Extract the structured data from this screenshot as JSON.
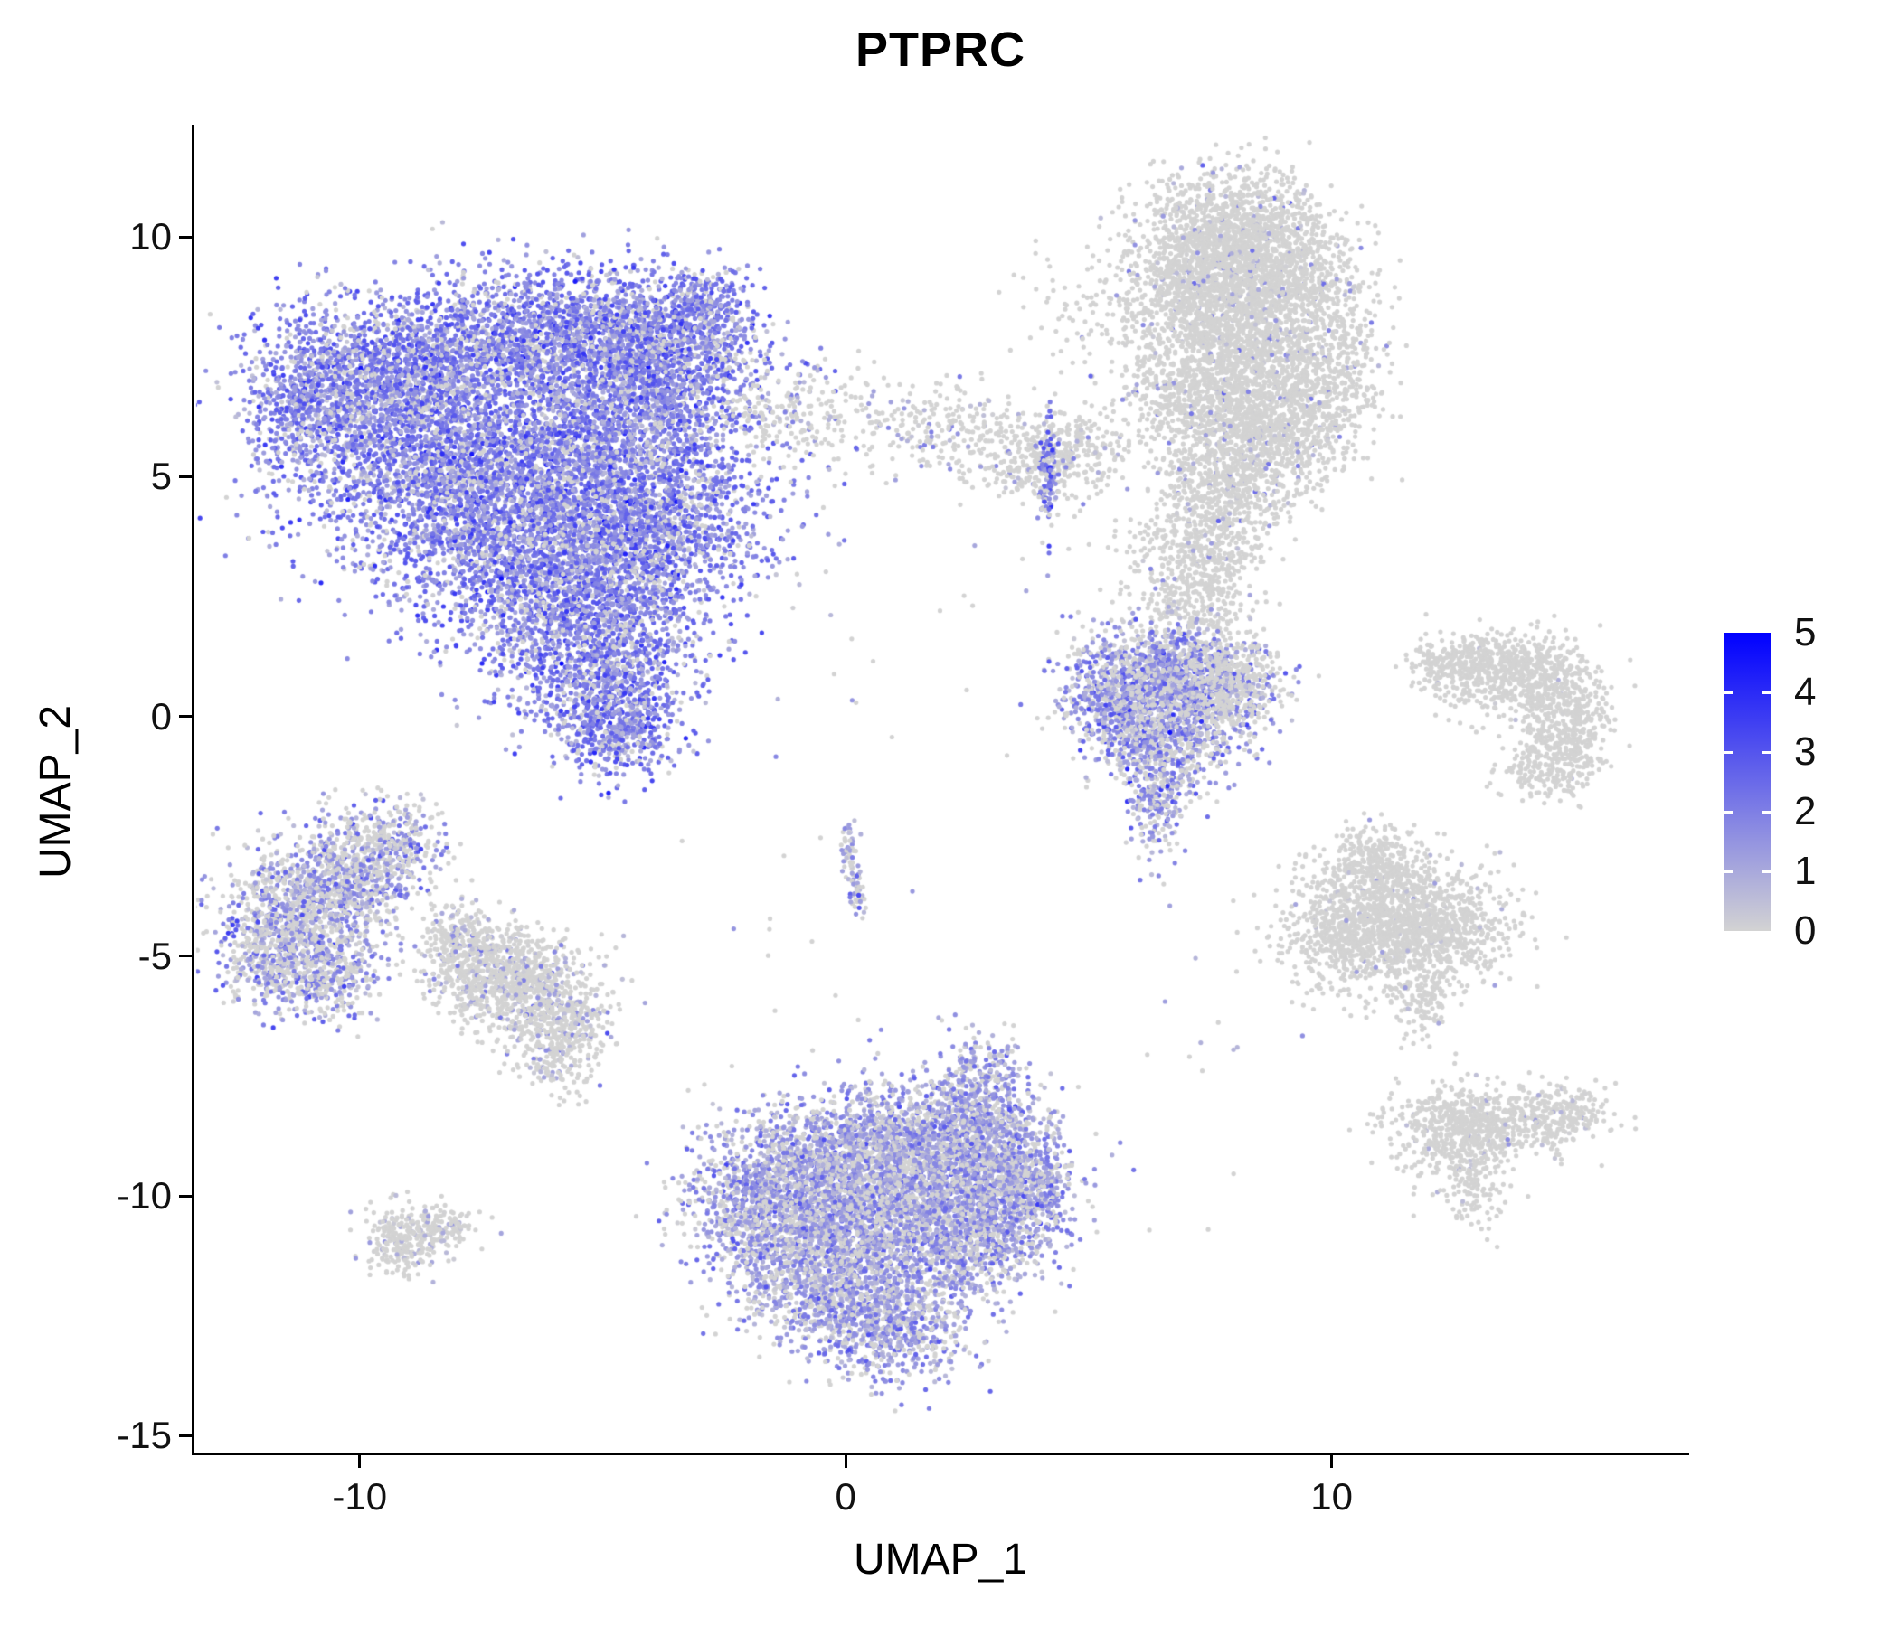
{
  "chart_data": {
    "type": "scatter",
    "title": "PTPRC",
    "xlabel": "UMAP_1",
    "ylabel": "UMAP_2",
    "x_ticks": [
      -10,
      0,
      10
    ],
    "y_ticks": [
      -15,
      -10,
      -5,
      0,
      5,
      10
    ],
    "xlim": [
      -13.4,
      17.3
    ],
    "ylim": [
      -15.35,
      12.3
    ],
    "grid": false,
    "point_radius_px": 2.6,
    "n_points_approx": 41500,
    "legend": {
      "position": "right",
      "ticks": [
        0,
        1,
        2,
        3,
        4,
        5
      ],
      "range": [
        0,
        5
      ],
      "color_low": "#D3D3D3",
      "color_high": "#0000FF"
    },
    "clusters": [
      {
        "name": "main-immune-cluster",
        "p0": 0.13,
        "mean": 1.9,
        "sd": 0.85,
        "blobs": [
          [
            -9.5,
            7.2,
            1.3,
            0.8,
            1500
          ],
          [
            -6.0,
            8.0,
            1.6,
            0.7,
            1700
          ],
          [
            -3.8,
            7.4,
            1.0,
            0.8,
            1100
          ],
          [
            -8.6,
            5.5,
            1.5,
            1.0,
            1700
          ],
          [
            -5.1,
            5.8,
            1.5,
            1.0,
            1800
          ],
          [
            -7.0,
            4.0,
            1.6,
            1.0,
            1700
          ],
          [
            -4.0,
            4.0,
            1.2,
            0.9,
            1300
          ],
          [
            -5.6,
            2.4,
            1.3,
            0.9,
            1300
          ],
          [
            -4.9,
            0.9,
            0.9,
            0.8,
            800
          ],
          [
            -4.7,
            -0.3,
            0.6,
            0.5,
            400
          ],
          [
            -11.2,
            6.3,
            0.6,
            0.6,
            350
          ],
          [
            -2.9,
            8.6,
            0.5,
            0.45,
            250
          ]
        ]
      },
      {
        "name": "upper-stream",
        "p0": 0.8,
        "mean": 1.0,
        "sd": 0.8,
        "blobs": [
          [
            -1.2,
            6.3,
            0.8,
            0.6,
            150
          ],
          [
            0.8,
            6.1,
            1.3,
            0.45,
            150
          ],
          [
            2.2,
            5.9,
            0.6,
            0.5,
            120
          ]
        ]
      },
      {
        "name": "stream-clump-grey",
        "p0": 0.87,
        "mean": 0.8,
        "sd": 0.7,
        "blobs": [
          [
            3.9,
            5.4,
            0.65,
            0.45,
            300
          ],
          [
            4.9,
            5.6,
            0.4,
            0.35,
            120
          ]
        ]
      },
      {
        "name": "stream-streak-purple",
        "p0": 0.22,
        "mean": 2.1,
        "sd": 0.8,
        "blobs": [
          [
            4.15,
            5.0,
            0.12,
            0.55,
            130
          ]
        ]
      },
      {
        "name": "upper-right-cluster",
        "p0": 0.93,
        "mean": 0.85,
        "sd": 0.9,
        "blobs": [
          [
            7.9,
            10.2,
            0.9,
            0.65,
            900
          ],
          [
            7.2,
            9.0,
            0.8,
            0.7,
            800
          ],
          [
            8.8,
            9.2,
            0.9,
            0.7,
            900
          ],
          [
            8.3,
            7.8,
            1.0,
            0.7,
            900
          ],
          [
            7.5,
            6.6,
            0.9,
            0.7,
            800
          ],
          [
            8.8,
            6.0,
            0.8,
            0.6,
            600
          ],
          [
            7.9,
            4.9,
            0.7,
            0.6,
            500
          ],
          [
            9.9,
            7.0,
            0.6,
            0.8,
            400
          ],
          [
            7.6,
            3.6,
            0.5,
            0.6,
            300
          ],
          [
            7.3,
            2.4,
            0.45,
            0.6,
            250
          ],
          [
            4.9,
            8.3,
            0.7,
            0.8,
            80
          ],
          [
            6.6,
            3.4,
            0.6,
            0.7,
            150
          ]
        ]
      },
      {
        "name": "mid-right-purple-cluster",
        "p0": 0.3,
        "mean": 1.5,
        "sd": 0.8,
        "blobs": [
          [
            6.3,
            0.9,
            0.8,
            0.55,
            800
          ],
          [
            7.4,
            0.6,
            0.7,
            0.5,
            600
          ],
          [
            5.8,
            -0.1,
            0.5,
            0.5,
            350
          ],
          [
            6.8,
            -0.6,
            0.6,
            0.45,
            400
          ],
          [
            6.4,
            -1.7,
            0.35,
            0.55,
            250
          ],
          [
            5.2,
            0.3,
            0.5,
            0.4,
            150
          ]
        ]
      },
      {
        "name": "mid-right-grey-overlap",
        "p0": 0.85,
        "mean": 0.7,
        "sd": 0.6,
        "blobs": [
          [
            7.9,
            0.6,
            0.55,
            0.5,
            350
          ]
        ]
      },
      {
        "name": "far-right-crescent",
        "p0": 0.985,
        "mean": 0.5,
        "sd": 0.4,
        "blobs": [
          [
            12.3,
            1.1,
            0.4,
            0.3,
            120
          ],
          [
            13.0,
            1.0,
            0.6,
            0.35,
            250
          ],
          [
            13.9,
            0.9,
            0.7,
            0.4,
            350
          ],
          [
            14.7,
            0.3,
            0.5,
            0.5,
            300
          ],
          [
            14.9,
            -0.6,
            0.4,
            0.4,
            200
          ],
          [
            14.3,
            -1.1,
            0.5,
            0.3,
            150
          ]
        ]
      },
      {
        "name": "right-middle-cluster",
        "p0": 0.96,
        "mean": 0.5,
        "sd": 0.5,
        "blobs": [
          [
            11.2,
            -4.0,
            1.0,
            0.6,
            900
          ],
          [
            12.2,
            -4.6,
            0.8,
            0.5,
            500
          ],
          [
            10.4,
            -4.8,
            0.7,
            0.5,
            400
          ],
          [
            10.9,
            -3.0,
            0.5,
            0.4,
            250
          ],
          [
            11.9,
            -5.9,
            0.3,
            0.5,
            130
          ]
        ]
      },
      {
        "name": "bottom-right-cluster",
        "p0": 0.94,
        "mean": 0.5,
        "sd": 0.5,
        "blobs": [
          [
            12.6,
            -8.6,
            0.7,
            0.45,
            450
          ],
          [
            13.8,
            -8.4,
            0.8,
            0.35,
            350
          ],
          [
            12.9,
            -9.7,
            0.35,
            0.5,
            150
          ],
          [
            14.9,
            -8.2,
            0.35,
            0.25,
            90
          ]
        ]
      },
      {
        "name": "left-cluster",
        "p0": 0.42,
        "mean": 1.3,
        "sd": 0.9,
        "blobs": [
          [
            -11.2,
            -4.2,
            0.85,
            0.75,
            1000
          ],
          [
            -10.2,
            -3.2,
            0.6,
            0.55,
            450
          ],
          [
            -11.9,
            -5.2,
            0.45,
            0.5,
            250
          ],
          [
            -10.6,
            -5.5,
            0.5,
            0.4,
            250
          ],
          [
            -9.3,
            -2.7,
            0.5,
            0.45,
            300
          ]
        ]
      },
      {
        "name": "left-adjacent-cluster",
        "p0": 0.78,
        "mean": 0.9,
        "sd": 0.8,
        "blobs": [
          [
            -7.3,
            -5.3,
            0.7,
            0.5,
            550
          ],
          [
            -6.3,
            -5.9,
            0.7,
            0.5,
            550
          ],
          [
            -5.8,
            -6.9,
            0.45,
            0.45,
            250
          ],
          [
            -7.9,
            -4.6,
            0.4,
            0.4,
            200
          ]
        ]
      },
      {
        "name": "bottom-center-cluster",
        "p0": 0.28,
        "mean": 1.35,
        "sd": 0.7,
        "blobs": [
          [
            -0.5,
            -9.4,
            1.1,
            0.7,
            1200
          ],
          [
            1.5,
            -8.9,
            1.1,
            0.7,
            1300
          ],
          [
            3.0,
            -9.4,
            0.8,
            0.7,
            900
          ],
          [
            -1.8,
            -10.3,
            0.8,
            0.7,
            700
          ],
          [
            0.5,
            -10.7,
            1.3,
            0.8,
            1400
          ],
          [
            2.6,
            -10.7,
            0.9,
            0.7,
            900
          ],
          [
            -0.4,
            -11.9,
            0.9,
            0.7,
            800
          ],
          [
            1.0,
            -12.7,
            0.8,
            0.55,
            600
          ],
          [
            2.8,
            -7.9,
            0.5,
            0.6,
            350
          ],
          [
            3.9,
            -9.8,
            0.35,
            0.5,
            200
          ]
        ]
      },
      {
        "name": "small-left-bottom-cluster",
        "p0": 0.86,
        "mean": 0.6,
        "sd": 0.5,
        "blobs": [
          [
            -9.1,
            -10.9,
            0.4,
            0.35,
            260
          ],
          [
            -8.3,
            -10.6,
            0.35,
            0.2,
            110
          ]
        ]
      },
      {
        "name": "tiny-sliver",
        "p0": 0.45,
        "mean": 1.4,
        "sd": 0.8,
        "blobs": [
          [
            0.05,
            -2.9,
            0.08,
            0.35,
            50
          ],
          [
            0.25,
            -3.6,
            0.08,
            0.3,
            45
          ]
        ]
      },
      {
        "name": "scattered-noise",
        "p0": 0.7,
        "mean": 0.8,
        "sd": 0.8,
        "blobs": [
          [
            2.5,
            2.0,
            2.5,
            2.5,
            25
          ],
          [
            -2.0,
            -5.5,
            2.0,
            1.5,
            20
          ],
          [
            9.0,
            -7.5,
            2.0,
            1.5,
            20
          ]
        ]
      }
    ]
  }
}
